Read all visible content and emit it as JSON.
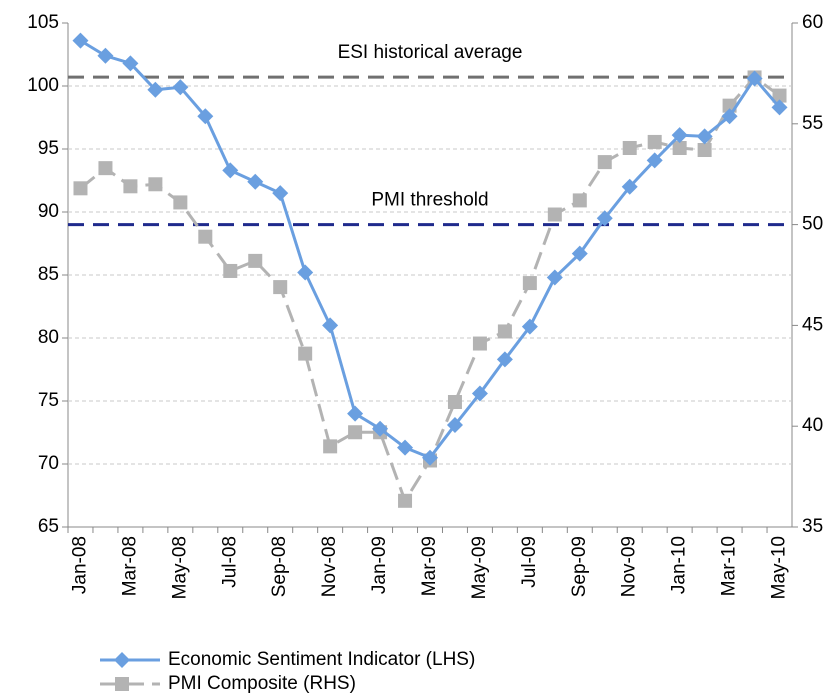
{
  "chart_data": {
    "type": "line",
    "categories": [
      "Jan-08",
      null,
      "Mar-08",
      null,
      "May-08",
      null,
      "Jul-08",
      null,
      "Sep-08",
      null,
      "Nov-08",
      null,
      "Jan-09",
      null,
      "Mar-09",
      null,
      "May-09",
      null,
      "Jul-09",
      null,
      "Sep-09",
      null,
      "Nov-09",
      null,
      "Jan-10",
      null,
      "Mar-10",
      null,
      "May-10"
    ],
    "series": [
      {
        "name": "Economic Sentiment Indicator (LHS)",
        "color": "#6a9fe0",
        "marker": "diamond",
        "dashed": false,
        "values": [
          103.6,
          102.4,
          101.8,
          99.7,
          99.9,
          97.6,
          93.3,
          92.4,
          91.5,
          85.2,
          81.0,
          74.0,
          72.8,
          71.3,
          70.5,
          73.1,
          75.6,
          78.3,
          80.9,
          84.8,
          86.7,
          89.5,
          92.0,
          94.1,
          96.1,
          96.0,
          97.6,
          100.6,
          98.3
        ]
      },
      {
        "name": "PMI Composite (RHS)",
        "color": "#b3b3b3",
        "marker": "square",
        "dashed": true,
        "axis": "y2",
        "values": [
          51.8,
          52.8,
          51.9,
          52.0,
          51.1,
          49.4,
          47.7,
          48.2,
          46.9,
          43.6,
          39.0,
          39.7,
          39.7,
          36.3,
          38.3,
          41.2,
          44.1,
          44.7,
          47.1,
          50.5,
          51.2,
          53.1,
          53.8,
          54.1,
          53.8,
          53.7,
          55.9,
          57.3,
          56.4
        ]
      }
    ],
    "reference_lines": [
      {
        "label": "ESI historical average",
        "value": 100.7,
        "color": "#707070"
      },
      {
        "label": "PMI threshold",
        "value": 50,
        "axis": "y2",
        "color": "#1f2a8c"
      }
    ],
    "ylim": [
      65,
      105
    ],
    "yticks": [
      65,
      70,
      75,
      80,
      85,
      90,
      95,
      100,
      105
    ],
    "y2lim": [
      35,
      60
    ],
    "y2ticks": [
      35,
      40,
      45,
      50,
      55,
      60
    ],
    "grid": true
  }
}
